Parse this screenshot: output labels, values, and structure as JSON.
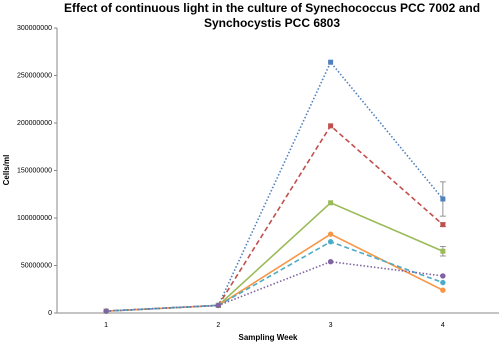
{
  "chart_data": {
    "type": "line",
    "title": [
      "Effect of continuous light in the culture of Synechococcus PCC 7002 and",
      "Synchocystis PCC 6803"
    ],
    "x_label": "Sampling Week",
    "y_label": "Cells/ml",
    "categories": [
      "1",
      "2",
      "3",
      "4"
    ],
    "ylim": [
      0,
      300000000
    ],
    "yticks": [
      0,
      50000000,
      100000000,
      150000000,
      200000000,
      250000000,
      300000000
    ],
    "series": [
      {
        "color": "#4f81bd",
        "dash": "dotted",
        "marker": "square",
        "values": [
          2000000,
          8000000,
          264000000,
          120000000
        ],
        "errors": [
          null,
          null,
          null,
          18000000
        ]
      },
      {
        "color": "#c0504d",
        "dash": "dashed",
        "marker": "square",
        "values": [
          2000000,
          8000000,
          197000000,
          93000000
        ],
        "errors": [
          null,
          null,
          null,
          2000000
        ]
      },
      {
        "color": "#9bbb59",
        "dash": "solid",
        "marker": "square",
        "values": [
          2000000,
          8000000,
          116000000,
          65000000
        ],
        "errors": [
          null,
          null,
          null,
          5000000
        ]
      },
      {
        "color": "#f79646",
        "dash": "solid",
        "marker": "circle",
        "values": [
          2000000,
          8000000,
          83000000,
          24000000
        ],
        "errors": [
          null,
          null,
          null,
          null
        ]
      },
      {
        "color": "#4bacc6",
        "dash": "dashed",
        "marker": "circle",
        "values": [
          2000000,
          8000000,
          75000000,
          32000000
        ],
        "errors": [
          null,
          null,
          null,
          null
        ]
      },
      {
        "color": "#8064a2",
        "dash": "dotted",
        "marker": "circle",
        "values": [
          2000000,
          8000000,
          54000000,
          39000000
        ],
        "errors": [
          null,
          null,
          null,
          null
        ]
      }
    ]
  }
}
